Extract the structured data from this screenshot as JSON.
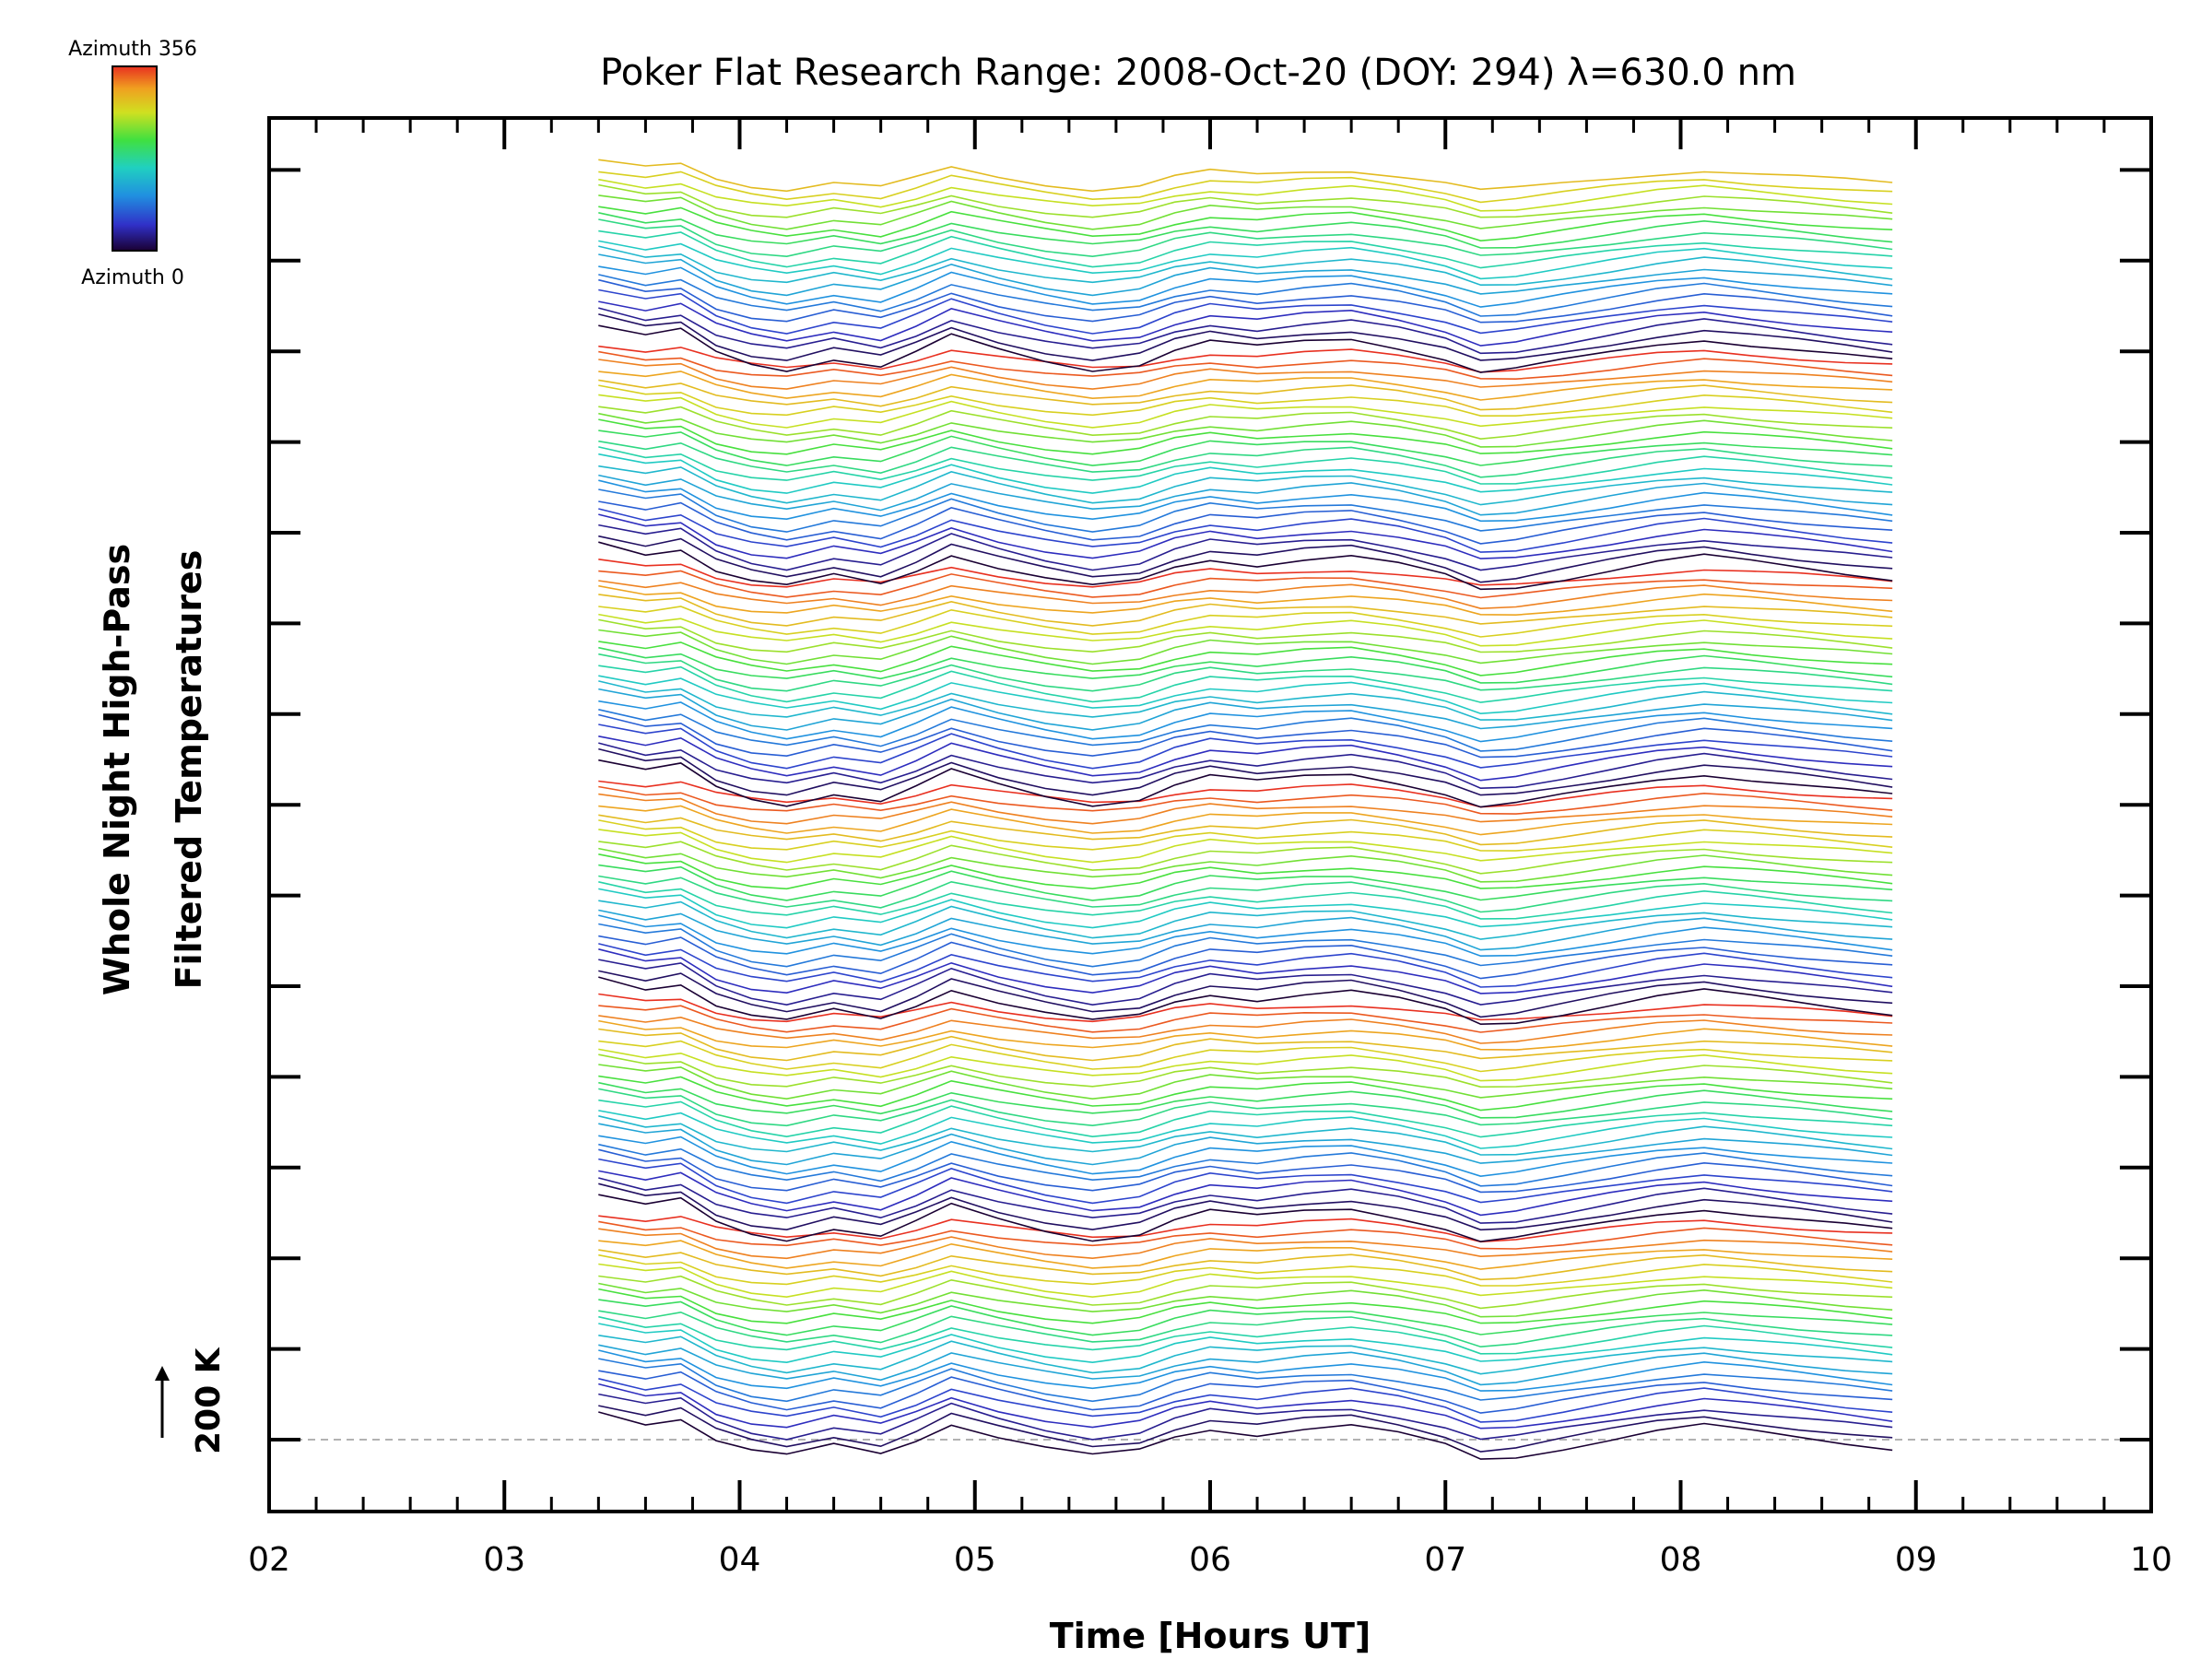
{
  "chart_data": {
    "type": "line",
    "title": "Poker Flat Research Range: 2008-Oct-20 (DOY: 294) λ=630.0 nm",
    "xlabel": "Time [Hours UT]",
    "ylabel_line1": "Whole Night High-Pass",
    "ylabel_line2": "Filtered Temperatures",
    "xlim": [
      2,
      10
    ],
    "x_tick_labels": [
      "02",
      "03",
      "04",
      "05",
      "06",
      "07",
      "08",
      "09",
      "10"
    ],
    "scale_bar_label": "200 K",
    "colorbar": {
      "top_label": "Azimuth 356",
      "bottom_label": "Azimuth 0",
      "colors": [
        "#1a0033",
        "#3030c8",
        "#2090e0",
        "#20d0c0",
        "#40e040",
        "#d0e020",
        "#f0a020",
        "#e83020"
      ]
    },
    "grid": false,
    "legend": "none",
    "series_count": 140,
    "x": [
      3.4,
      3.6,
      3.75,
      3.9,
      4.05,
      4.2,
      4.4,
      4.6,
      4.75,
      4.9,
      5.1,
      5.3,
      5.5,
      5.7,
      5.85,
      6.0,
      6.2,
      6.4,
      6.6,
      6.8,
      7.0,
      7.15,
      7.3,
      7.5,
      7.7,
      7.9,
      8.1,
      8.3,
      8.5,
      8.7,
      8.9
    ],
    "base_profile_K": [
      -40,
      -20,
      -30,
      10,
      30,
      40,
      20,
      35,
      10,
      -20,
      5,
      25,
      40,
      30,
      5,
      -10,
      0,
      -10,
      -15,
      0,
      20,
      45,
      40,
      25,
      10,
      -5,
      -15,
      -5,
      5,
      15,
      25
    ]
  }
}
